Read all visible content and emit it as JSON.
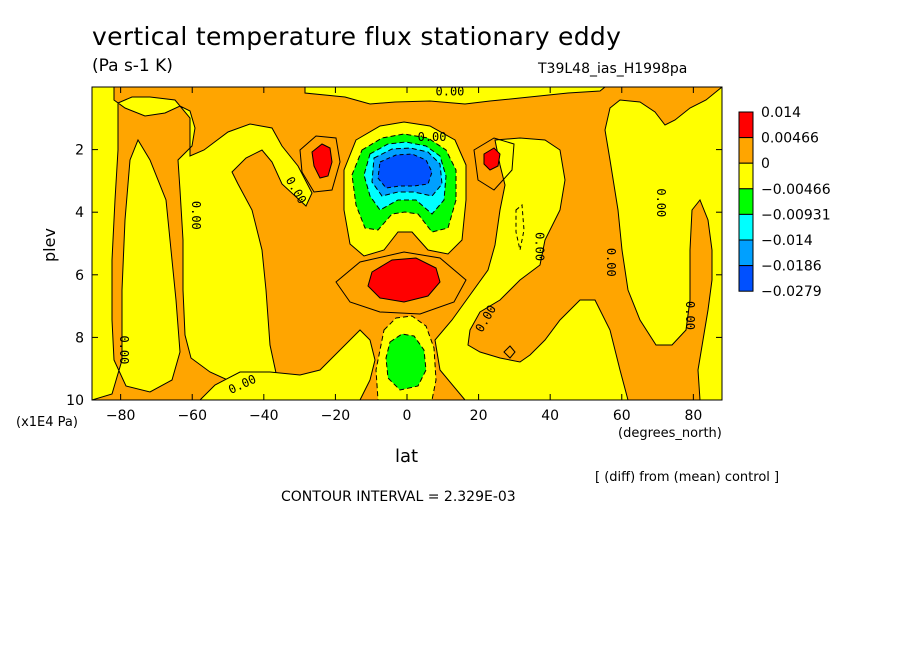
{
  "title": "vertical temperature flux stationary eddy",
  "units": "(Pa s-1 K)",
  "run_id": "T39L48_ias_H1998pa",
  "x_label": "lat",
  "y_label": "plev",
  "y_units": "(x1E4 Pa)",
  "x_units": "(degrees_north)",
  "diff_note": "[ (diff) from (mean) control ]",
  "contour_interval": "CONTOUR INTERVAL = 2.329E-03",
  "colors": {
    "c1": "#ff0000",
    "c2": "#ffa500",
    "c3": "#ffff00",
    "c4": "#00ff00",
    "c5": "#00ffff",
    "c6": "#00a0ff",
    "c7": "#0050ff"
  },
  "chart_data": {
    "type": "heatmap",
    "xlim": [
      -88,
      88
    ],
    "ylim": [
      10,
      0
    ],
    "x_ticks": [
      -80,
      -60,
      -40,
      -20,
      0,
      20,
      40,
      60,
      80
    ],
    "y_ticks": [
      2,
      4,
      6,
      8,
      10
    ],
    "legend": {
      "placement": "right",
      "entries": [
        {
          "label": "0.014",
          "color": "#ff0000"
        },
        {
          "label": "0.00466",
          "color": "#ffa500"
        },
        {
          "label": "0",
          "color": "#ffff00"
        },
        {
          "label": "−0.00466",
          "color": "#00ff00"
        },
        {
          "label": "−0.00931",
          "color": "#00ffff"
        },
        {
          "label": "−0.014",
          "color": "#00a0ff"
        },
        {
          "label": "−0.0186",
          "color": "#0050ff"
        },
        {
          "label": "−0.0279",
          "color": ""
        }
      ]
    },
    "contour_labels": [
      {
        "text": "0.00",
        "lat": 12,
        "plev": 0.15,
        "rot": 0
      },
      {
        "text": "0.00",
        "lat": 7,
        "plev": 1.6,
        "rot": 0
      },
      {
        "text": "0.00",
        "lat": -31,
        "plev": 3.3,
        "rot": 60
      },
      {
        "text": "0.00",
        "lat": -59,
        "plev": 4.1,
        "rot": 90
      },
      {
        "text": "0.00",
        "lat": 37,
        "plev": 5.1,
        "rot": 90
      },
      {
        "text": "0.00",
        "lat": 57,
        "plev": 5.6,
        "rot": 90
      },
      {
        "text": "0.00",
        "lat": 71,
        "plev": 3.7,
        "rot": 90
      },
      {
        "text": "0.00",
        "lat": 79,
        "plev": 7.3,
        "rot": 90
      },
      {
        "text": "0.00",
        "lat": 22,
        "plev": 7.4,
        "rot": -60
      },
      {
        "text": "0.00",
        "lat": -79,
        "plev": 8.4,
        "rot": 90
      },
      {
        "text": "0.00",
        "lat": -46,
        "plev": 9.5,
        "rot": -25
      }
    ]
  }
}
